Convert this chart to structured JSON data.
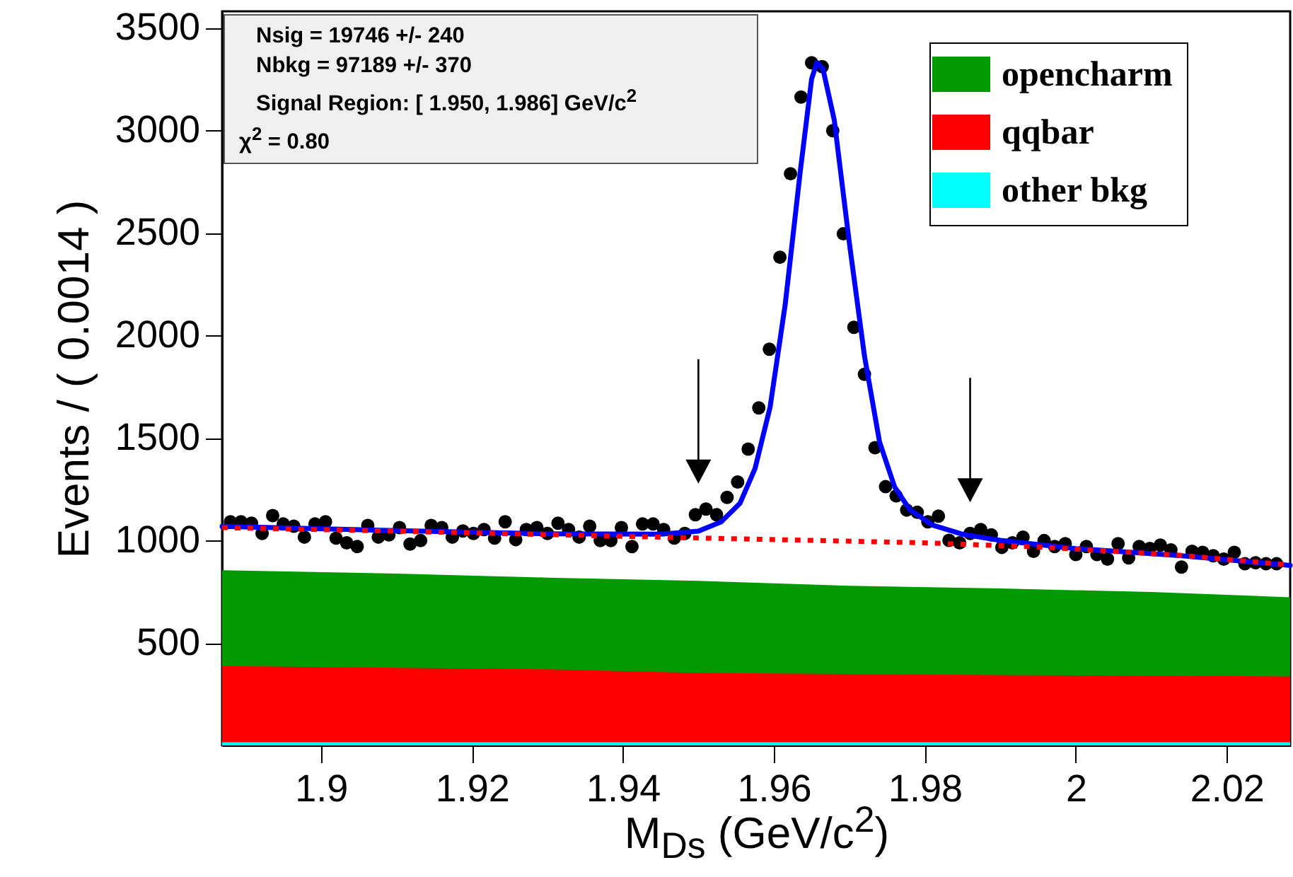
{
  "chart_data": {
    "type": "scatter",
    "xlabel": "M$_{Ds}$ (GeV/c$^{2}$)",
    "ylabel": "Events / ( 0.0014 )",
    "annotations": [
      "Nsig = 19746 +/-  240",
      "Nbkg = 97189 +/-  370",
      "Signal Region: [  1.950,   1.986] GeV/c$^{2}$",
      "χ$^{2}$ = 0.80"
    ],
    "xlim": [
      1.8869,
      2.0284
    ],
    "xticks": [
      1.9,
      1.92,
      1.94,
      1.96,
      1.98,
      2,
      2.02
    ],
    "ylim": [
      0,
      3580
    ],
    "yticks": [
      500,
      1000,
      1500,
      2000,
      2500,
      3000,
      3500
    ],
    "stacked": true,
    "legend": "top right",
    "ref_lines": [
      {
        "axis": "x",
        "value": 1.95
      },
      {
        "axis": "x",
        "value": 1.986
      }
    ],
    "series": [
      {
        "type": "area",
        "name": "other bkg",
        "color": "#00ffff",
        "x": [
          1.8869,
          1.91,
          1.93,
          1.95,
          1.97,
          1.99,
          2.01,
          2.0284
        ],
        "values": [
          12,
          12,
          12,
          12,
          12,
          12,
          12,
          12
        ]
      },
      {
        "type": "area",
        "name": "qqbar",
        "color": "#ff0000",
        "x": [
          1.8869,
          1.91,
          1.93,
          1.95,
          1.97,
          1.99,
          2.01,
          2.0284
        ],
        "values": [
          372,
          363,
          356,
          338,
          333,
          328,
          324,
          321
        ]
      },
      {
        "type": "area",
        "name": "opencharm",
        "color": "#009900",
        "x": [
          1.8869,
          1.91,
          1.93,
          1.95,
          1.97,
          1.99,
          2.01,
          2.0284
        ],
        "values": [
          467,
          460,
          447,
          449,
          430,
          422,
          409,
          386
        ]
      },
      {
        "marker": "circle",
        "color": "#000000",
        "x": [
          1.888,
          1.8894,
          1.8908,
          1.8922,
          1.8936,
          1.895,
          1.8964,
          1.8978,
          1.8992,
          1.9006,
          1.902,
          1.9034,
          1.9048,
          1.9062,
          1.9076,
          1.909,
          1.9104,
          1.9118,
          1.9132,
          1.9146,
          1.916,
          1.9174,
          1.9188,
          1.9202,
          1.9216,
          1.923,
          1.9244,
          1.9258,
          1.9272,
          1.9286,
          1.93,
          1.9314,
          1.9328,
          1.9342,
          1.9356,
          1.937,
          1.9384,
          1.9398,
          1.9412,
          1.9426,
          1.944,
          1.9454,
          1.9468,
          1.9482,
          1.9496,
          1.951,
          1.9524,
          1.9538,
          1.9552,
          1.9566,
          1.958,
          1.9594,
          1.9608,
          1.9622,
          1.9636,
          1.965,
          1.9664,
          1.9678,
          1.9692,
          1.9706,
          1.972,
          1.9734,
          1.9748,
          1.9762,
          1.9776,
          1.979,
          1.9804,
          1.9818,
          1.9832,
          1.9846,
          1.986,
          1.9874,
          1.9888,
          1.9902,
          1.9916,
          1.993,
          1.9944,
          1.9958,
          1.9972,
          1.9986,
          2,
          2.0014,
          2.0028,
          2.0042,
          2.0056,
          2.007,
          2.0084,
          2.0098,
          2.0112,
          2.0126,
          2.014,
          2.0154,
          2.0168,
          2.0182,
          2.0196,
          2.021,
          2.0224,
          2.0238,
          2.0252,
          2.0266
        ],
        "values": [
          1091,
          1091,
          1084,
          1034,
          1121,
          1080,
          1069,
          1016,
          1080,
          1091,
          1011,
          988,
          970,
          1073,
          1016,
          1027,
          1062,
          982,
          999,
          1073,
          1062,
          1016,
          1046,
          1034,
          1053,
          1011,
          1091,
          1004,
          1053,
          1062,
          1034,
          1084,
          1053,
          1016,
          1069,
          999,
          999,
          1062,
          970,
          1080,
          1080,
          1053,
          1011,
          1034,
          1125,
          1153,
          1125,
          1210,
          1285,
          1445,
          1646,
          1932,
          2381,
          2788,
          3162,
          3329,
          3310,
          2998,
          2495,
          2039,
          1810,
          1452,
          1262,
          1217,
          1148,
          1137,
          1091,
          1118,
          1000,
          988,
          1034,
          1053,
          1027,
          966,
          988,
          1016,
          947,
          999,
          970,
          984,
          931,
          970,
          931,
          909,
          984,
          915,
          970,
          961,
          977,
          954,
          870,
          947,
          942,
          925,
          909,
          942,
          886,
          891,
          886,
          886
        ]
      },
      {
        "type": "line",
        "color": "#0000ff",
        "line_style": "solid",
        "x": [
          1.8869,
          1.91,
          1.93,
          1.945,
          1.95,
          1.953,
          1.9555,
          1.9575,
          1.9595,
          1.9615,
          1.9635,
          1.965,
          1.9657,
          1.9665,
          1.968,
          1.97,
          1.972,
          1.974,
          1.976,
          1.978,
          1.981,
          1.985,
          1.99,
          2.0,
          2.014,
          2.0284
        ],
        "values": [
          1068,
          1048,
          1032,
          1030,
          1045,
          1090,
          1180,
          1350,
          1650,
          2150,
          2800,
          3250,
          3330,
          3300,
          3050,
          2450,
          1900,
          1480,
          1260,
          1150,
          1075,
          1030,
          1000,
          960,
          925,
          878
        ]
      },
      {
        "type": "line",
        "color": "#ff0000",
        "line_style": "dotted",
        "x": [
          1.8869,
          1.91,
          1.93,
          1.947,
          1.965,
          1.98,
          1.996,
          2.014,
          2.0284
        ],
        "values": [
          1062,
          1045,
          1028,
          1014,
          1000,
          988,
          966,
          927,
          880
        ]
      }
    ]
  }
}
